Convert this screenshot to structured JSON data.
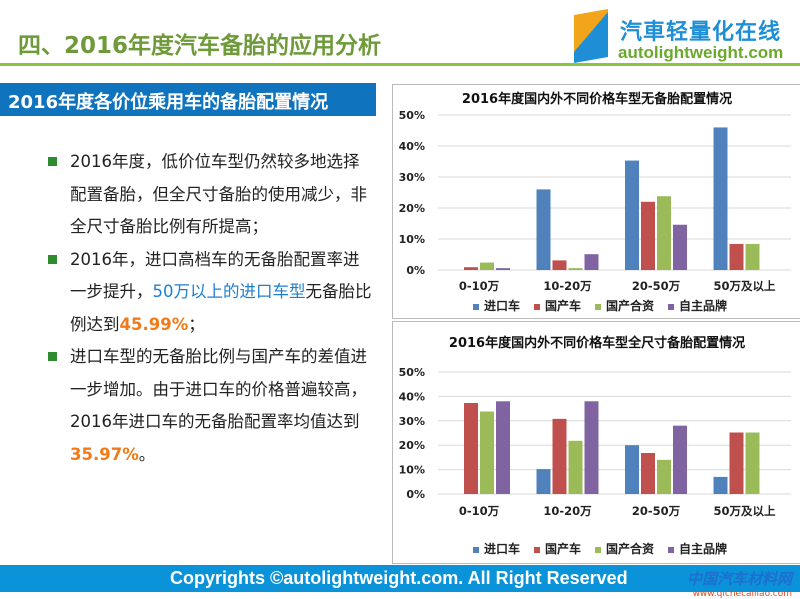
{
  "header": {
    "title": "四、2016年度汽车备胎的应用分析",
    "logo_cn": "汽車轻量化在线",
    "logo_en": "autolightweight.com"
  },
  "section": {
    "title": "2016年度各价位乘用车的备胎配置情况"
  },
  "bullets": [
    {
      "text": "2016年度，低价位车型仍然较多地选择配置备胎，但全尺寸备胎的使用减少，非全尺寸备胎比例有所提高；"
    },
    {
      "pre": "2016年，进口高档车的无备胎配置率进一步提升，",
      "blue": "50万以上的进口车型",
      "mid": "无备胎比例达到",
      "orange": "45.99%",
      "post": "；"
    },
    {
      "pre": "进口车型的无备胎比例与国产车的差值进一步增加。由于进口车的价格普遍较高，2016年进口车的无备胎配置率均值达到",
      "orange": "35.97%",
      "post": "。"
    }
  ],
  "colors": {
    "进口车": "#4f81bd",
    "国产车": "#c0504d",
    "国产合资": "#9bbb59",
    "自主品牌": "#8064a2"
  },
  "chart_data": [
    {
      "type": "bar",
      "title": "2016年度国内外不同价格车型无备胎配置情况",
      "categories": [
        "0-10万",
        "10-20万",
        "20-50万",
        "50万及以上"
      ],
      "series": [
        {
          "name": "进口车",
          "values": [
            0,
            26,
            35.3,
            45.99
          ]
        },
        {
          "name": "国产车",
          "values": [
            0.9,
            3.1,
            22,
            8.4
          ]
        },
        {
          "name": "国产合资",
          "values": [
            2.4,
            0.6,
            23.8,
            8.4
          ]
        },
        {
          "name": "自主品牌",
          "values": [
            0.6,
            5.1,
            14.6,
            0
          ]
        }
      ],
      "yticks": [
        "0%",
        "10%",
        "20%",
        "30%",
        "40%",
        "50%"
      ],
      "ylim": [
        0,
        50
      ],
      "legend": "bottom"
    },
    {
      "type": "bar",
      "title": "2016年度国内外不同价格车型全尺寸备胎配置情况",
      "categories": [
        "0-10万",
        "10-20万",
        "20-50万",
        "50万及以上"
      ],
      "series": [
        {
          "name": "进口车",
          "values": [
            0,
            10.2,
            20,
            7
          ]
        },
        {
          "name": "国产车",
          "values": [
            37.3,
            30.8,
            16.8,
            25.2
          ]
        },
        {
          "name": "国产合资",
          "values": [
            33.8,
            21.8,
            14,
            25.2
          ]
        },
        {
          "name": "自主品牌",
          "values": [
            38,
            38,
            28,
            0
          ]
        }
      ],
      "yticks": [
        "0%",
        "10%",
        "20%",
        "30%",
        "40%",
        "50%"
      ],
      "ylim": [
        0,
        50
      ],
      "legend": "bottom"
    }
  ],
  "footer": {
    "text": "Copyrights ©autolightweight.com. All Right Reserved",
    "wm_cn": "中国汽车材料网",
    "wm_en": "www.qichecailiao.com"
  }
}
